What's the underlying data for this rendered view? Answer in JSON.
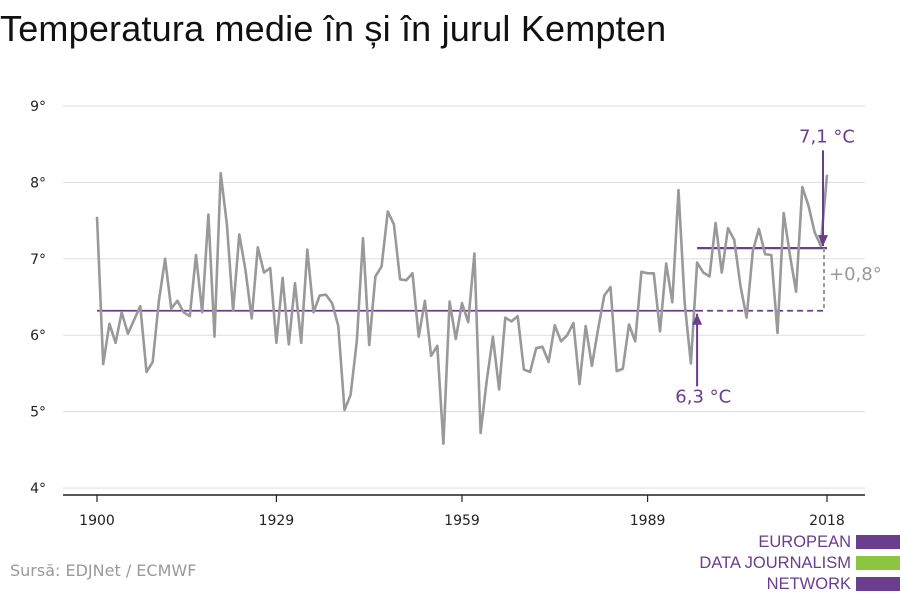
{
  "title": "Temperatura medie în și în jurul Kempten",
  "source": "Sursă: EDJNet / ECMWF",
  "logo": {
    "lines": [
      "EUROPEAN",
      "DATA JOURNALISM",
      "NETWORK"
    ],
    "colors": [
      "#6a3d8f",
      "#8cc63f",
      "#6a3d8f"
    ]
  },
  "chart_data": {
    "type": "line",
    "x_start": 1900,
    "x_end": 2018,
    "x_ticks": [
      1900,
      1929,
      1959,
      1989,
      2018
    ],
    "x_tick_labels": [
      "1900",
      "1929",
      "1959",
      "1989",
      "2018"
    ],
    "y_ticks": [
      4,
      5,
      6,
      7,
      8,
      9
    ],
    "y_tick_labels": [
      "4°",
      "5°",
      "6°",
      "7°",
      "8°",
      "9°"
    ],
    "ylim": [
      4,
      9
    ],
    "grid": true,
    "series": [
      {
        "color": "#999999",
        "x": [
          1900,
          1901,
          1902,
          1903,
          1904,
          1905,
          1906,
          1907,
          1908,
          1909,
          1910,
          1911,
          1912,
          1913,
          1914,
          1915,
          1916,
          1917,
          1918,
          1919,
          1920,
          1921,
          1922,
          1923,
          1924,
          1925,
          1926,
          1927,
          1928,
          1929,
          1930,
          1931,
          1932,
          1933,
          1934,
          1935,
          1936,
          1937,
          1938,
          1939,
          1940,
          1941,
          1942,
          1943,
          1944,
          1945,
          1946,
          1947,
          1948,
          1949,
          1950,
          1951,
          1952,
          1953,
          1954,
          1955,
          1956,
          1957,
          1958,
          1959,
          1960,
          1961,
          1962,
          1963,
          1964,
          1965,
          1966,
          1967,
          1968,
          1969,
          1970,
          1971,
          1972,
          1973,
          1974,
          1975,
          1976,
          1977,
          1978,
          1979,
          1980,
          1981,
          1982,
          1983,
          1984,
          1985,
          1986,
          1987,
          1988,
          1989,
          1990,
          1991,
          1992,
          1993,
          1994,
          1995,
          1996,
          1997,
          1998,
          1999,
          2000,
          2001,
          2002,
          2003,
          2004,
          2005,
          2006,
          2007,
          2008,
          2009,
          2010,
          2011,
          2012,
          2013,
          2014,
          2015,
          2016,
          2017,
          2018
        ],
        "y": [
          7.55,
          5.62,
          6.15,
          5.9,
          6.3,
          6.02,
          6.2,
          6.38,
          5.52,
          5.65,
          6.45,
          7.0,
          6.35,
          6.45,
          6.3,
          6.25,
          7.05,
          6.3,
          7.58,
          5.98,
          8.12,
          7.45,
          6.32,
          7.32,
          6.85,
          6.22,
          7.15,
          6.82,
          6.88,
          5.9,
          6.75,
          5.88,
          6.68,
          5.9,
          7.12,
          6.3,
          6.52,
          6.53,
          6.42,
          6.12,
          5.02,
          5.22,
          5.92,
          7.27,
          5.87,
          6.77,
          6.9,
          7.62,
          7.45,
          6.73,
          6.72,
          6.81,
          5.98,
          6.45,
          5.73,
          5.86,
          4.58,
          6.44,
          5.95,
          6.42,
          6.17,
          7.07,
          4.72,
          5.4,
          5.98,
          5.29,
          6.23,
          6.18,
          6.25,
          5.55,
          5.52,
          5.83,
          5.85,
          5.65,
          6.13,
          5.92,
          6.0,
          6.16,
          5.36,
          6.12,
          5.6,
          6.08,
          6.52,
          6.63,
          5.53,
          5.56,
          6.14,
          5.92,
          6.83,
          6.81,
          6.81,
          6.05,
          6.94,
          6.43,
          7.9,
          6.42,
          5.63,
          6.95,
          6.82,
          6.77,
          7.47,
          6.82,
          7.4,
          7.25,
          6.65,
          6.23,
          7.1,
          7.39,
          7.06,
          7.05,
          6.03,
          7.6,
          7.05,
          6.57,
          7.94,
          7.7,
          7.35,
          7.17,
          8.1
        ]
      }
    ],
    "reference_lines": [
      {
        "color": "#6a3d8f",
        "y": 6.32,
        "x_solid": [
          1900,
          1997
        ],
        "x_dashed": [
          1997,
          2018
        ]
      },
      {
        "color": "#6a3d8f",
        "y": 7.14,
        "x_solid": [
          1997,
          2018
        ]
      }
    ],
    "annotations": [
      {
        "text": "6,3 °C",
        "color": "#6a3d8f",
        "x": 1998,
        "y": 5.2
      },
      {
        "text": "7,1 °C",
        "color": "#6a3d8f",
        "x": 2018,
        "y": 8.6
      },
      {
        "text": "+0,8°",
        "color": "#999999",
        "x": 2018,
        "y": 6.8
      }
    ]
  }
}
